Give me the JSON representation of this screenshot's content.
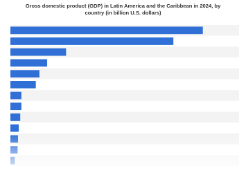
{
  "chart_data": {
    "type": "bar",
    "orientation": "horizontal",
    "title": "Gross domestic product (GDP) in Latin America and the Caribbean in 2024, by country (in billion U.S. dollars)",
    "categories": [
      null,
      null,
      null,
      null,
      null,
      null,
      null,
      null,
      null,
      null,
      null,
      null,
      null
    ],
    "values": [
      2188,
      1853,
      633,
      418,
      330,
      289,
      125,
      125,
      112,
      95,
      87,
      82,
      50
    ],
    "color": "#2f6fd6",
    "xlim": [
      0,
      2600
    ]
  }
}
